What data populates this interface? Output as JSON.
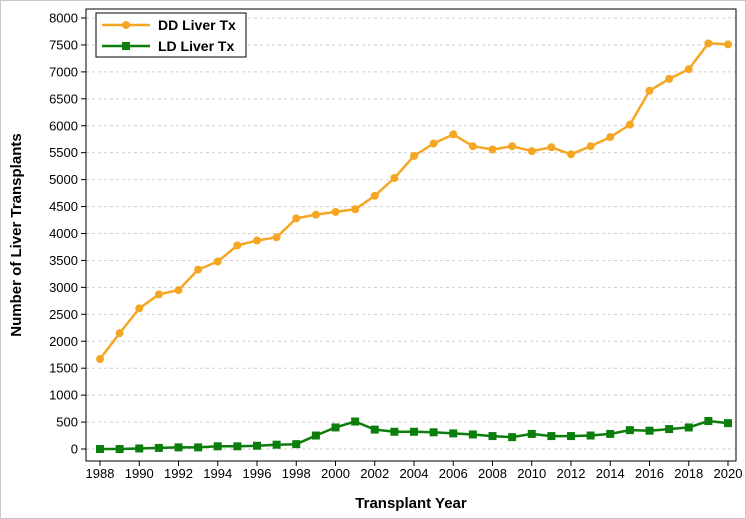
{
  "chart_data": {
    "type": "line",
    "title": "",
    "xlabel": "Transplant Year",
    "ylabel": "Number of Liver Transplants",
    "xlim": [
      1988,
      2020
    ],
    "ylim": [
      0,
      8000
    ],
    "xticks": [
      "1988",
      "1990",
      "1992",
      "1994",
      "1996",
      "1998",
      "2000",
      "2002",
      "2004",
      "2006",
      "2008",
      "2010",
      "2012",
      "2014",
      "2016",
      "2018",
      "2020"
    ],
    "yticks": [
      "0",
      "500",
      "1000",
      "1500",
      "2000",
      "2500",
      "3000",
      "3500",
      "4000",
      "4500",
      "5000",
      "5500",
      "6000",
      "6500",
      "7000",
      "7500",
      "8000"
    ],
    "grid": "horizontal dashed",
    "legend": "top-left",
    "x": [
      1988,
      1989,
      1990,
      1991,
      1992,
      1993,
      1994,
      1995,
      1996,
      1997,
      1998,
      1999,
      2000,
      2001,
      2002,
      2003,
      2004,
      2005,
      2006,
      2007,
      2008,
      2009,
      2010,
      2011,
      2012,
      2013,
      2014,
      2015,
      2016,
      2017,
      2018,
      2019,
      2020
    ],
    "series": [
      {
        "name": "DD Liver Tx",
        "color": "#f5a623",
        "marker": "circle",
        "values": [
          1670,
          2150,
          2610,
          2870,
          2950,
          3330,
          3480,
          3780,
          3870,
          3930,
          4280,
          4350,
          4400,
          4450,
          4700,
          5030,
          5440,
          5670,
          5840,
          5620,
          5560,
          5620,
          5530,
          5600,
          5470,
          5620,
          5790,
          6020,
          6650,
          6870,
          7050,
          7530,
          7510
        ]
      },
      {
        "name": "LD Liver Tx",
        "color": "#0b7d0b",
        "marker": "square",
        "values": [
          0,
          0,
          10,
          20,
          30,
          30,
          50,
          50,
          60,
          80,
          90,
          250,
          400,
          510,
          360,
          320,
          320,
          310,
          290,
          270,
          240,
          220,
          280,
          240,
          240,
          250,
          280,
          350,
          340,
          370,
          400,
          520,
          480
        ]
      }
    ]
  }
}
